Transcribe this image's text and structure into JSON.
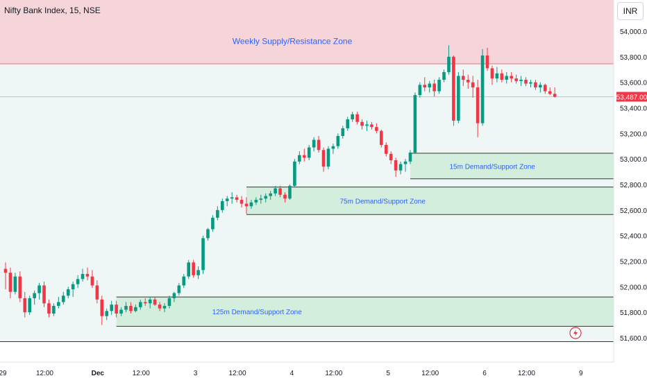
{
  "header": {
    "symbol_title": "Nifty Bank Index, 15, NSE",
    "currency": "INR"
  },
  "colors": {
    "up": "#089981",
    "down": "#f23645",
    "supply_zone_fill": "#f5d5da",
    "demand_zone_fill": "#d4eedd",
    "background_tint": "#eef7f6",
    "zone_label": "#2962ff",
    "last_price_badge": "#f23645"
  },
  "chart_data": {
    "type": "candlestick",
    "title": "Nifty Bank Index, 15, NSE",
    "y_axis": {
      "ticks": [
        54000,
        53800,
        53600,
        53400,
        53200,
        53000,
        52800,
        52600,
        52400,
        52200,
        52000,
        51800,
        51600
      ],
      "tick_labels": [
        "54,000.00",
        "53,800.00",
        "53,600.00",
        "53,400.00",
        "53,200.00",
        "53,000.00",
        "52,800.00",
        "52,600.00",
        "52,400.00",
        "52,200.00",
        "52,000.00",
        "51,800.00",
        "51,600.00"
      ],
      "range": [
        51540,
        54280
      ]
    },
    "x_axis": {
      "ticks": [
        {
          "label": "29",
          "bar": 0
        },
        {
          "label": "12:00",
          "bar": 9
        },
        {
          "label": "Dec",
          "bar": 20
        },
        {
          "label": "12:00",
          "bar": 29
        },
        {
          "label": "3",
          "bar": 40
        },
        {
          "label": "12:00",
          "bar": 49
        },
        {
          "label": "4",
          "bar": 60
        },
        {
          "label": "12:00",
          "bar": 69
        },
        {
          "label": "5",
          "bar": 80
        },
        {
          "label": "12:00",
          "bar": 89
        },
        {
          "label": "6",
          "bar": 100
        },
        {
          "label": "12:00",
          "bar": 109
        },
        {
          "label": "9",
          "bar": 120
        }
      ],
      "bar_count": 120
    },
    "last_price": {
      "value": 53487,
      "label": "53,487.00"
    },
    "zones": [
      {
        "label": "Weekly Supply/Resistance Zone",
        "kind": "supply",
        "low": 53745,
        "high": 54280,
        "from_bar": 0,
        "to_bar": 128
      },
      {
        "label": "15m Demand/Support Zone",
        "kind": "demand",
        "low": 52845,
        "high": 53045,
        "from_bar": 84,
        "to_bar": 128
      },
      {
        "label": "75m Demand/Support Zone",
        "kind": "demand",
        "low": 52565,
        "high": 52780,
        "from_bar": 50,
        "to_bar": 128
      },
      {
        "label": "125m Demand/Support Zone",
        "kind": "demand",
        "low": 51690,
        "high": 51920,
        "from_bar": 23,
        "to_bar": 128
      }
    ],
    "bottom_line": 51570,
    "candles": [
      [
        52140,
        52190,
        51980,
        52110
      ],
      [
        52110,
        52150,
        51910,
        51960
      ],
      [
        51960,
        52110,
        51940,
        52080
      ],
      [
        52080,
        52120,
        51880,
        51910
      ],
      [
        51910,
        51960,
        51760,
        51800
      ],
      [
        51800,
        51930,
        51780,
        51910
      ],
      [
        51910,
        51970,
        51860,
        51950
      ],
      [
        51950,
        52030,
        51900,
        52010
      ],
      [
        52010,
        52040,
        51840,
        51870
      ],
      [
        51870,
        51900,
        51760,
        51790
      ],
      [
        51790,
        51870,
        51770,
        51850
      ],
      [
        51850,
        51920,
        51830,
        51880
      ],
      [
        51880,
        51960,
        51860,
        51930
      ],
      [
        51930,
        52000,
        51910,
        51980
      ],
      [
        51980,
        52040,
        51920,
        52020
      ],
      [
        52020,
        52090,
        51990,
        52060
      ],
      [
        52060,
        52140,
        52040,
        52100
      ],
      [
        52100,
        52150,
        52050,
        52080
      ],
      [
        52080,
        52130,
        51990,
        52010
      ],
      [
        52010,
        52050,
        51870,
        51900
      ],
      [
        51900,
        51930,
        51700,
        51770
      ],
      [
        51770,
        51830,
        51740,
        51810
      ],
      [
        51810,
        51890,
        51780,
        51860
      ],
      [
        51860,
        51890,
        51760,
        51790
      ],
      [
        51790,
        51840,
        51770,
        51820
      ],
      [
        51820,
        51880,
        51800,
        51850
      ],
      [
        51850,
        51880,
        51790,
        51810
      ],
      [
        51810,
        51860,
        51800,
        51840
      ],
      [
        51840,
        51900,
        51820,
        51880
      ],
      [
        51880,
        51910,
        51850,
        51870
      ],
      [
        51870,
        51920,
        51830,
        51900
      ],
      [
        51900,
        51920,
        51850,
        51860
      ],
      [
        51860,
        51880,
        51810,
        51830
      ],
      [
        51830,
        51870,
        51800,
        51850
      ],
      [
        51850,
        51930,
        51830,
        51910
      ],
      [
        51910,
        51960,
        51880,
        51950
      ],
      [
        51950,
        52030,
        51930,
        52010
      ],
      [
        52010,
        52100,
        51990,
        52080
      ],
      [
        52080,
        52210,
        52060,
        52190
      ],
      [
        52190,
        52210,
        52070,
        52090
      ],
      [
        52090,
        52160,
        52060,
        52130
      ],
      [
        52130,
        52400,
        52100,
        52380
      ],
      [
        52380,
        52460,
        52360,
        52450
      ],
      [
        52450,
        52560,
        52430,
        52540
      ],
      [
        52540,
        52630,
        52520,
        52600
      ],
      [
        52600,
        52690,
        52580,
        52670
      ],
      [
        52670,
        52710,
        52630,
        52690
      ],
      [
        52690,
        52740,
        52650,
        52700
      ],
      [
        52700,
        52720,
        52660,
        52680
      ],
      [
        52680,
        52710,
        52620,
        52650
      ],
      [
        52650,
        52700,
        52570,
        52630
      ],
      [
        52630,
        52680,
        52610,
        52660
      ],
      [
        52660,
        52700,
        52640,
        52680
      ],
      [
        52680,
        52720,
        52650,
        52690
      ],
      [
        52690,
        52730,
        52660,
        52710
      ],
      [
        52710,
        52750,
        52680,
        52730
      ],
      [
        52730,
        52790,
        52710,
        52770
      ],
      [
        52770,
        52790,
        52700,
        52720
      ],
      [
        52720,
        52740,
        52660,
        52690
      ],
      [
        52690,
        52800,
        52680,
        52790
      ],
      [
        52790,
        53000,
        52780,
        52980
      ],
      [
        52980,
        53060,
        52960,
        53030
      ],
      [
        53030,
        53080,
        52980,
        53010
      ],
      [
        53010,
        53110,
        52990,
        53090
      ],
      [
        53090,
        53170,
        53060,
        53150
      ],
      [
        53150,
        53180,
        53050,
        53070
      ],
      [
        53070,
        53090,
        52900,
        52940
      ],
      [
        52940,
        53100,
        52920,
        53080
      ],
      [
        53080,
        53120,
        53040,
        53100
      ],
      [
        53100,
        53200,
        53080,
        53180
      ],
      [
        53180,
        53260,
        53160,
        53240
      ],
      [
        53240,
        53330,
        53220,
        53310
      ],
      [
        53310,
        53370,
        53290,
        53350
      ],
      [
        53350,
        53370,
        53270,
        53290
      ],
      [
        53290,
        53310,
        53230,
        53260
      ],
      [
        53260,
        53300,
        53220,
        53270
      ],
      [
        53270,
        53290,
        53230,
        53250
      ],
      [
        53250,
        53280,
        53200,
        53220
      ],
      [
        53220,
        53230,
        53090,
        53110
      ],
      [
        53110,
        53130,
        53020,
        53040
      ],
      [
        53040,
        53060,
        52960,
        52990
      ],
      [
        52990,
        53010,
        52860,
        52910
      ],
      [
        52910,
        52980,
        52880,
        52960
      ],
      [
        52960,
        53000,
        52900,
        52980
      ],
      [
        52980,
        53070,
        52960,
        53050
      ],
      [
        53050,
        53520,
        53040,
        53500
      ],
      [
        53500,
        53600,
        53480,
        53580
      ],
      [
        53580,
        53640,
        53530,
        53560
      ],
      [
        53560,
        53610,
        53520,
        53590
      ],
      [
        53590,
        53620,
        53490,
        53530
      ],
      [
        53530,
        53640,
        53510,
        53620
      ],
      [
        53620,
        53700,
        53600,
        53680
      ],
      [
        53680,
        53890,
        53660,
        53800
      ],
      [
        53800,
        53810,
        53260,
        53300
      ],
      [
        53300,
        53680,
        53280,
        53650
      ],
      [
        53650,
        53700,
        53570,
        53620
      ],
      [
        53620,
        53660,
        53550,
        53600
      ],
      [
        53600,
        53650,
        53480,
        53560
      ],
      [
        53560,
        53620,
        53170,
        53280
      ],
      [
        53280,
        53860,
        53260,
        53810
      ],
      [
        53810,
        53870,
        53690,
        53710
      ],
      [
        53710,
        53730,
        53580,
        53630
      ],
      [
        53630,
        53720,
        53600,
        53670
      ],
      [
        53670,
        53700,
        53600,
        53620
      ],
      [
        53620,
        53680,
        53590,
        53650
      ],
      [
        53650,
        53680,
        53600,
        53630
      ],
      [
        53630,
        53660,
        53590,
        53610
      ],
      [
        53610,
        53650,
        53570,
        53620
      ],
      [
        53620,
        53640,
        53570,
        53590
      ],
      [
        53590,
        53620,
        53560,
        53600
      ],
      [
        53600,
        53620,
        53540,
        53560
      ],
      [
        53560,
        53600,
        53520,
        53580
      ],
      [
        53580,
        53590,
        53510,
        53530
      ],
      [
        53530,
        53560,
        53500,
        53510
      ],
      [
        53510,
        53560,
        53480,
        53487
      ]
    ]
  },
  "flash_icon": "lightning-icon"
}
